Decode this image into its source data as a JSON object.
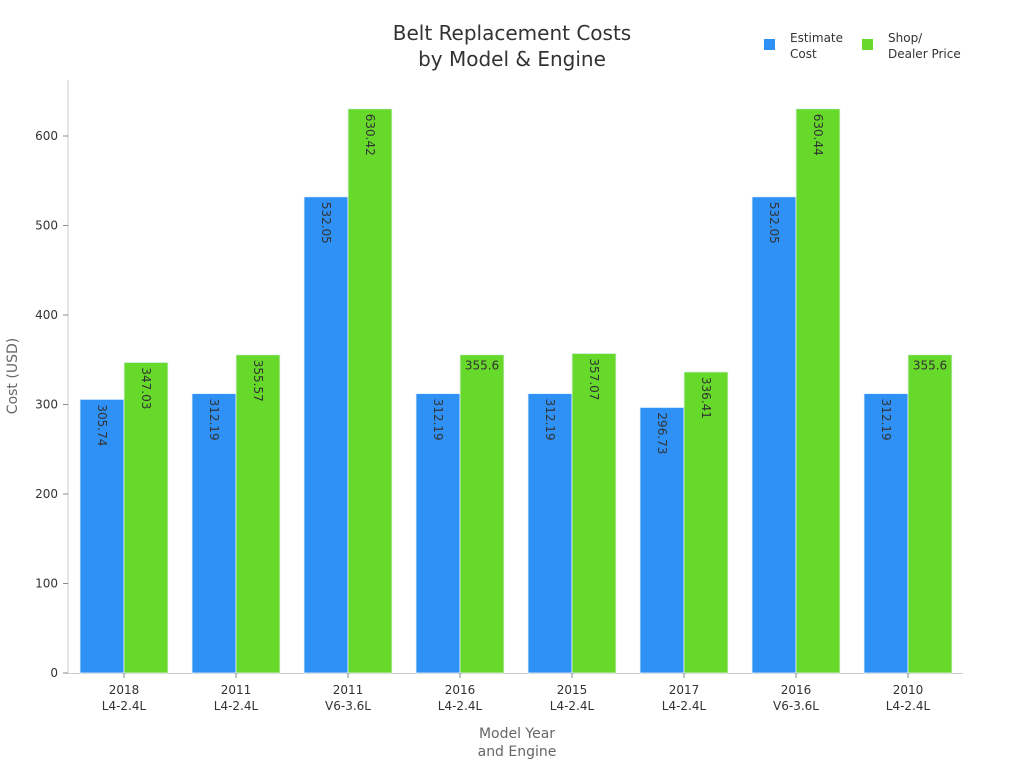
{
  "chart_data": {
    "type": "bar",
    "title": [
      "Belt Replacement Costs",
      "by Model & Engine"
    ],
    "xlabel": [
      "Model Year",
      "and Engine"
    ],
    "ylabel": "Cost (USD)",
    "ylim": [
      0,
      660
    ],
    "yticks": [
      0,
      100,
      200,
      300,
      400,
      500,
      600
    ],
    "grid": false,
    "legend_position": "top-right",
    "categories": [
      [
        "2018",
        "L4-2.4L"
      ],
      [
        "2011",
        "L4-2.4L"
      ],
      [
        "2011",
        "V6-3.6L"
      ],
      [
        "2016",
        "L4-2.4L"
      ],
      [
        "2015",
        "L4-2.4L"
      ],
      [
        "2017",
        "L4-2.4L"
      ],
      [
        "2016",
        "V6-3.6L"
      ],
      [
        "2010",
        "L4-2.4L"
      ]
    ],
    "series": [
      {
        "name": [
          "Estimate",
          "Cost"
        ],
        "color": "#2f91f5",
        "values": [
          305.74,
          312.19,
          532.05,
          312.19,
          312.19,
          296.73,
          532.05,
          312.19
        ]
      },
      {
        "name": [
          "Shop/",
          "Dealer Price"
        ],
        "color": "#66d92a",
        "values": [
          347.03,
          355.57,
          630.42,
          355.6,
          357.07,
          336.41,
          630.44,
          355.6
        ]
      }
    ]
  }
}
